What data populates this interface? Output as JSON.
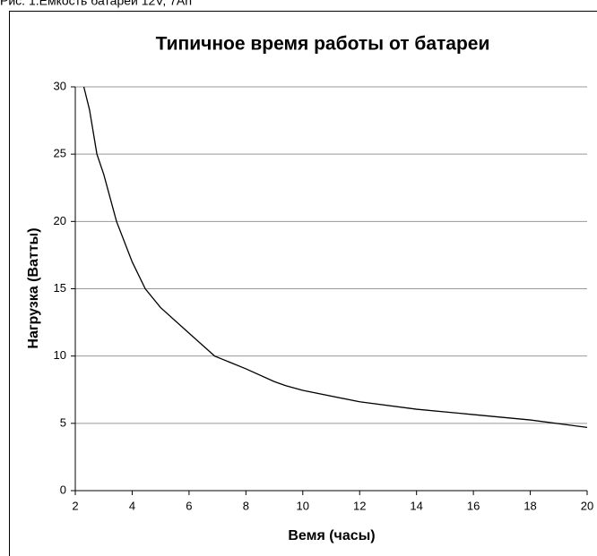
{
  "caption": "Рис. 1.Емкость батареи 12V, 7Ah",
  "chart_data": {
    "type": "line",
    "title": "Типичное время работы от батареи",
    "xlabel": "Вемя (часы)",
    "ylabel": "Нагрузка (Ватты)",
    "x": [
      2.3,
      2.5,
      2.76,
      3,
      3.45,
      4,
      4.46,
      5,
      6,
      6.9,
      8,
      9,
      9.4,
      10,
      12,
      14,
      16,
      18,
      20
    ],
    "series": [
      {
        "name": "Нагрузка",
        "color": "#000000",
        "values": [
          30,
          28.3,
          25,
          23.5,
          20,
          17,
          15,
          13.6,
          11.7,
          10,
          9.05,
          8.1,
          7.8,
          7.45,
          6.6,
          6.05,
          5.65,
          5.25,
          4.7
        ]
      }
    ],
    "xlim": [
      2,
      20
    ],
    "xticks": [
      2,
      4,
      6,
      8,
      10,
      12,
      14,
      16,
      18,
      20
    ],
    "ylim": [
      0,
      30
    ],
    "yticks": [
      0,
      5,
      10,
      15,
      20,
      25,
      30
    ],
    "grid": true
  }
}
